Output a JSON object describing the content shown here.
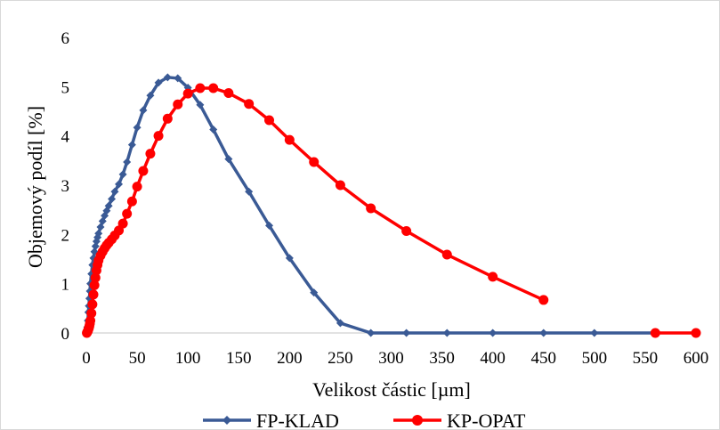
{
  "chart_data": {
    "type": "line",
    "title": "",
    "xlabel": "Velikost částic [µm]",
    "ylabel": "Objemový  podíl  [%]",
    "xlim": [
      0,
      600
    ],
    "ylim": [
      0,
      6
    ],
    "x_ticks": [
      "0",
      "50",
      "100",
      "150",
      "200",
      "250",
      "300",
      "350",
      "400",
      "450",
      "500",
      "550",
      "600"
    ],
    "y_ticks": [
      "0",
      "1",
      "2",
      "3",
      "4",
      "5",
      "6"
    ],
    "grid": false,
    "legend_position": "bottom",
    "series": [
      {
        "name": "FP-KLAD",
        "color": "#3a5a95",
        "marker": "diamond",
        "x": [
          0.5,
          1,
          1.5,
          2,
          2.5,
          3,
          3.5,
          4,
          5,
          6,
          7,
          8,
          9,
          10,
          11,
          12,
          14,
          16,
          18,
          20,
          22,
          25,
          28,
          32,
          36,
          40,
          45,
          50,
          56,
          63,
          71,
          80,
          90,
          100,
          112,
          125,
          140,
          160,
          180,
          200,
          224,
          250,
          280,
          315,
          355,
          400,
          450,
          500,
          560
        ],
        "y": [
          0.02,
          0.12,
          0.25,
          0.42,
          0.55,
          0.7,
          0.85,
          1.0,
          1.2,
          1.38,
          1.52,
          1.65,
          1.76,
          1.86,
          1.94,
          2.02,
          2.15,
          2.27,
          2.38,
          2.48,
          2.58,
          2.72,
          2.87,
          3.02,
          3.22,
          3.47,
          3.82,
          4.17,
          4.52,
          4.82,
          5.08,
          5.19,
          5.17,
          4.98,
          4.63,
          4.13,
          3.53,
          2.87,
          2.18,
          1.52,
          0.82,
          0.2,
          0.0,
          0.0,
          0.0,
          0.0,
          0.0,
          0.0,
          0.0
        ]
      },
      {
        "name": "KP-OPAT",
        "color": "#ff0000",
        "marker": "circle",
        "x": [
          0.5,
          1,
          1.5,
          2,
          2.5,
          3,
          3.5,
          4,
          5,
          6,
          7,
          8,
          9,
          10,
          11,
          12,
          14,
          16,
          18,
          20,
          22,
          25,
          28,
          32,
          36,
          40,
          45,
          50,
          56,
          63,
          71,
          80,
          90,
          100,
          112,
          125,
          140,
          160,
          180,
          200,
          224,
          250,
          280,
          315,
          355,
          400,
          450
        ],
        "y": [
          0.0,
          0.02,
          0.04,
          0.07,
          0.1,
          0.14,
          0.19,
          0.25,
          0.4,
          0.58,
          0.78,
          0.97,
          1.12,
          1.27,
          1.38,
          1.47,
          1.57,
          1.65,
          1.72,
          1.78,
          1.83,
          1.9,
          1.98,
          2.08,
          2.22,
          2.42,
          2.67,
          2.97,
          3.29,
          3.64,
          4.0,
          4.35,
          4.64,
          4.86,
          4.97,
          4.97,
          4.87,
          4.65,
          4.32,
          3.92,
          3.47,
          3.0,
          2.53,
          2.07,
          1.59,
          1.14,
          0.67
        ]
      },
      {
        "name": "",
        "color": "#ff0000",
        "marker": "circle",
        "x": [
          560,
          600
        ],
        "y": [
          0.0,
          0.0
        ]
      }
    ]
  }
}
